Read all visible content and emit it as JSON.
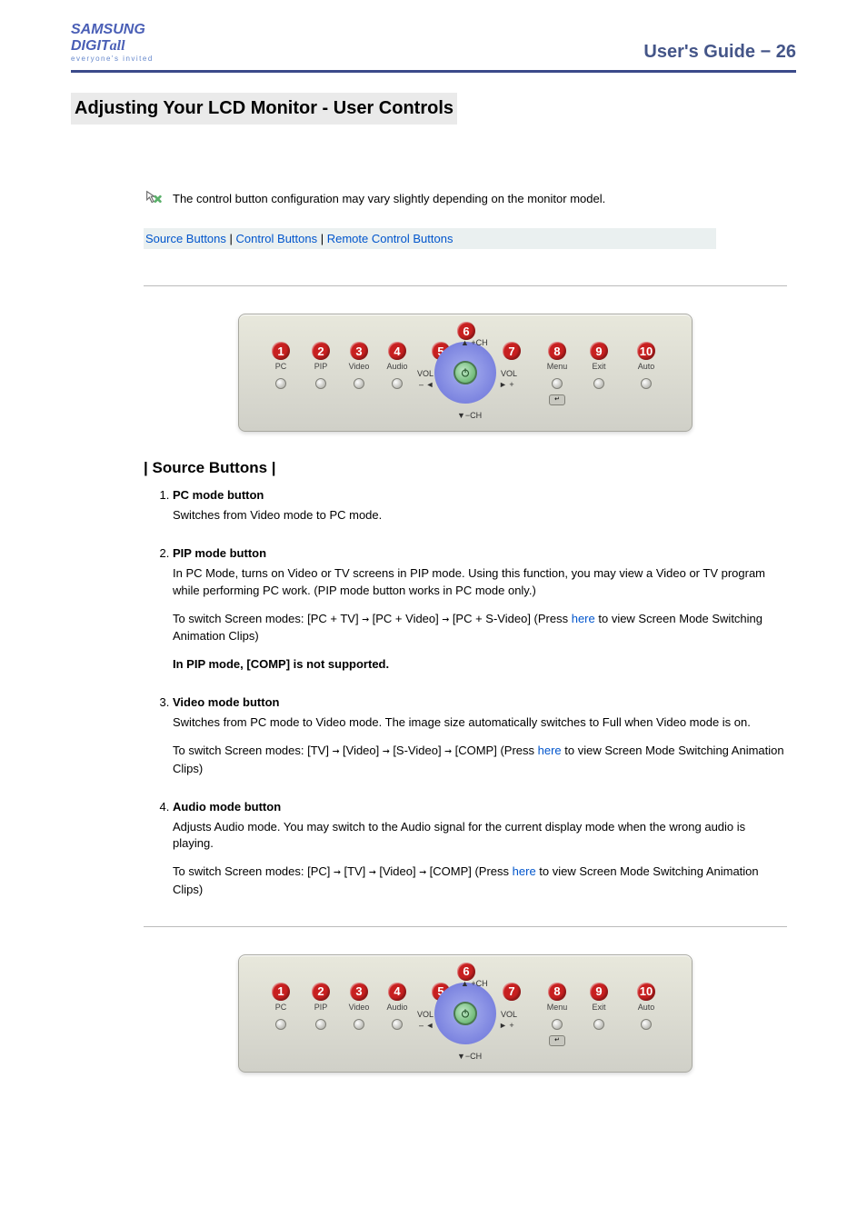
{
  "header": {
    "logo_main": "SAMSUNG DIGIT",
    "logo_tail": "all",
    "logo_sub": "everyone's invited",
    "guide_label": "User's Guide",
    "page_num": "26"
  },
  "section_title": "Adjusting Your LCD Monitor - User Controls",
  "note_text": "The control button configuration may vary slightly depending on the monitor model.",
  "nav": {
    "link1": "Source Buttons",
    "link2": "Control Buttons",
    "link3": "Remote Control Buttons",
    "sep": " | "
  },
  "panel": {
    "badges": [
      "1",
      "2",
      "3",
      "4",
      "5",
      "6",
      "7",
      "8",
      "9",
      "10"
    ],
    "labels": {
      "pc": "PC",
      "pip": "PIP",
      "video": "Video",
      "audio": "Audio",
      "vol_minus": "VOL",
      "vol_plus": "VOL",
      "ch_up": "+CH",
      "ch_down": "−CH",
      "menu": "Menu",
      "exit": "Exit",
      "auto": "Auto",
      "enter": "↵"
    },
    "colors": {
      "panel_bg_top": "#e8e8dc",
      "panel_bg_bot": "#d0d0c8",
      "badge": "#c82020",
      "ring_outer": "#6870d8",
      "ring_inner": "#a8b0f0",
      "power_btn": "#50a858"
    },
    "positions_x": [
      36,
      80,
      122,
      164,
      212,
      250,
      290,
      340,
      386,
      438
    ]
  },
  "sub_heading": "| Source Buttons |",
  "items": [
    {
      "title": "PC mode button",
      "body": [
        "Switches from Video mode to PC mode."
      ]
    },
    {
      "title": "PIP mode button",
      "body": [
        "In PC Mode, turns on Video or TV screens in PIP mode. Using this function, you may view a Video or TV program while performing PC work. (PIP mode button works in PC mode only.)",
        "To switch Screen modes: [PC + TV]  →  [PC + Video]  →  [PC + S-Video] (Press <a>here</a> to view Screen Mode Switching Animation Clips)",
        "<b>In PIP mode, [COMP] is not supported.</b>"
      ]
    },
    {
      "title": "Video mode button",
      "body": [
        "Switches from PC mode to Video mode. The image size automatically switches to Full when Video mode is on.",
        "To switch Screen modes: [TV]  →  [Video]  →  [S-Video]  →  [COMP] (Press <a>here</a> to view Screen Mode Switching Animation Clips)"
      ]
    },
    {
      "title": "Audio mode button",
      "body": [
        "Adjusts Audio mode. You may switch to the Audio signal for the current display mode when the wrong audio is playing.",
        "To switch Screen modes: [PC]  →  [TV]  →  [Video]  →  [COMP] (Press <a>here</a> to view Screen Mode Switching Animation Clips)"
      ]
    }
  ]
}
